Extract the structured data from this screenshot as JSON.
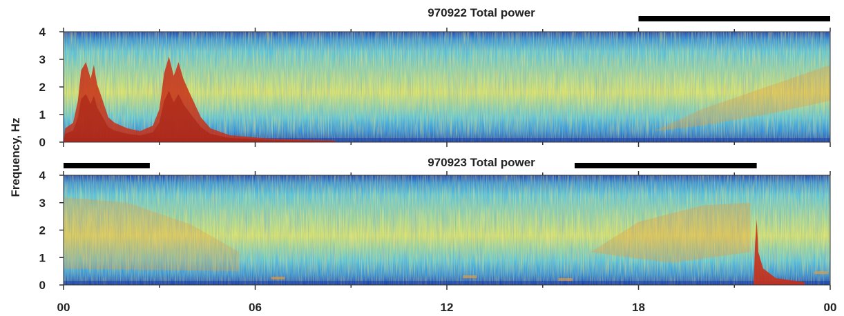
{
  "chart_data": [
    {
      "type": "heatmap",
      "title": "970922  Total power",
      "ylabel": "Frequency, Hz",
      "xlabel": "",
      "x_ticks": [
        "00",
        "06",
        "12",
        "18",
        "00"
      ],
      "y_ticks": [
        "0",
        "1",
        "2",
        "3",
        "4"
      ],
      "xlim_hours": [
        0,
        24
      ],
      "ylim": [
        0,
        4
      ],
      "bars_hours": [
        [
          18,
          24
        ]
      ],
      "colormap": [
        "#1a3fa8",
        "#2f8fd8",
        "#5cc8d8",
        "#d8e46a",
        "#e89a3a",
        "#c83018"
      ]
    },
    {
      "type": "heatmap",
      "title": "970923  Total power",
      "ylabel": "Frequency, Hz",
      "xlabel": "",
      "x_ticks": [
        "00",
        "06",
        "12",
        "18",
        "00"
      ],
      "y_ticks": [
        "0",
        "1",
        "2",
        "3",
        "4"
      ],
      "xlim_hours": [
        0,
        24
      ],
      "ylim": [
        0,
        4
      ],
      "bars_hours": [
        [
          0,
          2.7
        ],
        [
          16,
          21.7
        ]
      ],
      "colormap": [
        "#1a3fa8",
        "#2f8fd8",
        "#5cc8d8",
        "#d8e46a",
        "#e89a3a",
        "#c83018"
      ]
    }
  ]
}
